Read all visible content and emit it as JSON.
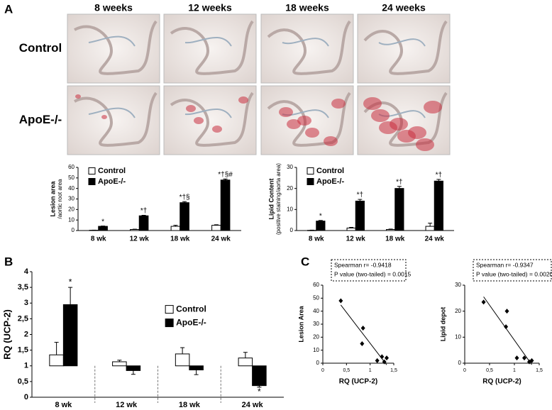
{
  "panel_labels": [
    "A",
    "B",
    "C"
  ],
  "micrographs": {
    "columns": [
      "8 weeks",
      "12 weeks",
      "18 weeks",
      "24 weeks"
    ],
    "rows": [
      "Control",
      "ApoE-/-"
    ]
  },
  "chart_data": [
    {
      "type": "bar",
      "ylabel": [
        "Lesion area",
        "/aortic root area"
      ],
      "categories": [
        "8 wk",
        "12 wk",
        "18 wk",
        "24 wk"
      ],
      "series": [
        {
          "name": "Control",
          "color": "#ffffff",
          "values": [
            0.3,
            1,
            4,
            5
          ],
          "errors": [
            0.1,
            0.3,
            1,
            0.5
          ],
          "marks": [
            null,
            null,
            null,
            null
          ]
        },
        {
          "name": "ApoE-/-",
          "color": "#000000",
          "values": [
            4,
            14,
            26.5,
            48
          ],
          "errors": [
            0.3,
            0.5,
            1,
            1
          ],
          "marks": [
            "*",
            "*†",
            "*†§",
            "*†§#"
          ]
        }
      ],
      "ylim": [
        0,
        60
      ],
      "yticks": [
        0,
        10,
        20,
        30,
        40,
        50,
        60
      ],
      "baseline": 0,
      "grid": false,
      "legend": "upper left"
    },
    {
      "type": "bar",
      "ylabel": [
        "Lipid  Content",
        "(positive staining/aorta area)"
      ],
      "categories": [
        "8 wk",
        "12 wk",
        "18 wk",
        "24 wk"
      ],
      "series": [
        {
          "name": "Control",
          "color": "#ffffff",
          "values": [
            0.1,
            1.2,
            0.5,
            2
          ],
          "errors": [
            0.1,
            0.3,
            0.2,
            1.5
          ],
          "marks": [
            null,
            null,
            null,
            null
          ]
        },
        {
          "name": "ApoE-/-",
          "color": "#000000",
          "values": [
            4.5,
            14,
            20,
            23.5
          ],
          "errors": [
            0.3,
            0.8,
            1,
            0.8
          ],
          "marks": [
            "*",
            "*†",
            "*†",
            "*†"
          ]
        }
      ],
      "ylim": [
        0,
        30
      ],
      "yticks": [
        0,
        10,
        20,
        30
      ],
      "baseline": 0,
      "grid": false,
      "legend": "upper left"
    },
    {
      "type": "bar",
      "ylabel": [
        "RQ (UCP-2)"
      ],
      "categories": [
        "8 wk",
        "12 wk",
        "18 wk",
        "24 wk"
      ],
      "series": [
        {
          "name": "Control",
          "color": "#ffffff",
          "values": [
            1.35,
            1.13,
            1.38,
            1.25
          ],
          "errors": [
            0.4,
            0.05,
            0.2,
            0.18
          ],
          "marks": [
            null,
            null,
            null,
            null
          ]
        },
        {
          "name": "ApoE-/-",
          "color": "#000000",
          "values": [
            2.95,
            0.85,
            0.87,
            0.37
          ],
          "errors": [
            0.55,
            0.12,
            0.15,
            0.05
          ],
          "marks": [
            "*",
            null,
            null,
            "*"
          ]
        }
      ],
      "ylim": [
        0,
        4
      ],
      "yticks": [
        0,
        {
          "value": 0.5,
          "label": "0,5"
        },
        1,
        {
          "value": 1.5,
          "label": "1,5"
        },
        2,
        {
          "value": 2.5,
          "label": "2,5"
        },
        3,
        {
          "value": 3.5,
          "label": "3,5"
        },
        4
      ],
      "baseline": 1,
      "grid": false,
      "legend": "center right",
      "category_dividers": true
    },
    {
      "type": "scatter",
      "ylabel": [
        "Lesion Area"
      ],
      "xlabel": "RQ (UCP-2)",
      "x": [
        0.38,
        0.85,
        0.83,
        1.15,
        1.25,
        1.35,
        1.3
      ],
      "values": [
        48,
        27,
        15,
        2,
        5,
        4,
        1
      ],
      "color": "#000000",
      "xlim": [
        0,
        1.5
      ],
      "xticks": [
        0,
        {
          "value": 0.5,
          "label": "0,5"
        },
        1,
        {
          "value": 1.5,
          "label": "1,5"
        }
      ],
      "ylim": [
        0,
        60
      ],
      "yticks": [
        0,
        10,
        20,
        30,
        40,
        50,
        60
      ],
      "trendline": true,
      "annotation": [
        "Spearman r= -0.9418",
        "P value (two-tailed) = 0.0015"
      ]
    },
    {
      "type": "scatter",
      "ylabel": [
        "Lipid depot"
      ],
      "xlabel": "RQ (UCP-2)",
      "x": [
        0.38,
        0.85,
        0.83,
        1.05,
        1.2,
        1.3,
        1.35
      ],
      "values": [
        23.5,
        20,
        14,
        2,
        2,
        0.5,
        1
      ],
      "color": "#000000",
      "xlim": [
        0,
        1.5
      ],
      "xticks": [
        0,
        {
          "value": 0.5,
          "label": "0,5"
        },
        1,
        {
          "value": 1.5,
          "label": "1,5"
        }
      ],
      "ylim": [
        0,
        30
      ],
      "yticks": [
        0,
        10,
        20,
        30
      ],
      "trendline": true,
      "annotation": [
        "Spearman r= -0.9347",
        "P value (two-tailed) = 0.0020"
      ]
    }
  ]
}
